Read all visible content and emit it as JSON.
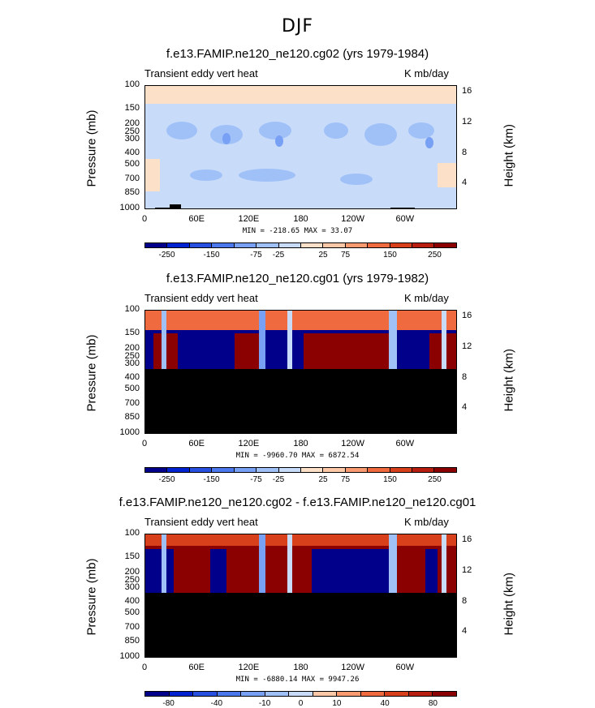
{
  "title": "DJF",
  "colors": [
    "#00008b",
    "#0022d0",
    "#2850e0",
    "#4c78ee",
    "#78a0f4",
    "#a0c0f8",
    "#c8dcfa",
    "#fde0c8",
    "#fcc8a8",
    "#fa9a70",
    "#f06a40",
    "#d8401c",
    "#b81e10",
    "#8b0000"
  ],
  "x_ticks": [
    "0",
    "60E",
    "120E",
    "180",
    "120W",
    "60W"
  ],
  "y_ticks_pressure": [
    "100",
    "150",
    "200",
    "250",
    "300",
    "400",
    "500",
    "700",
    "850",
    "1000"
  ],
  "y_ticks_height": [
    "16",
    "12",
    "8",
    "4"
  ],
  "panels": [
    {
      "title": "f.e13.FAMIP.ne120_ne120.cg02 (yrs 1979-1984)",
      "left": "Transient eddy vert heat",
      "right": "K mb/day",
      "ylabel": "Pressure (mb)",
      "rlabel": "Height (km)",
      "minmax": "MIN = -218.65   MAX =  33.07",
      "cbar_labels": [
        "-250",
        "-150",
        "-75",
        "-25",
        "25",
        "75",
        "150",
        "250"
      ]
    },
    {
      "title": "f.e13.FAMIP.ne120_ne120.cg01 (yrs 1979-1982)",
      "left": "Transient eddy vert heat",
      "right": "K mb/day",
      "ylabel": "Pressure (mb)",
      "rlabel": "Height (km)",
      "minmax": "MIN = -9960.70   MAX = 6872.54",
      "cbar_labels": [
        "-250",
        "-150",
        "-75",
        "-25",
        "25",
        "75",
        "150",
        "250"
      ]
    },
    {
      "title": "f.e13.FAMIP.ne120_ne120.cg02 - f.e13.FAMIP.ne120_ne120.cg01",
      "left": "Transient eddy vert heat",
      "right": "K mb/day",
      "ylabel": "Pressure (mb)",
      "rlabel": "Height (km)",
      "minmax": "MIN = -6880.14   MAX = 9947.26",
      "cbar_labels": [
        "-80",
        "-40",
        "-10",
        "0",
        "10",
        "40",
        "80"
      ]
    }
  ],
  "chart_data": [
    {
      "type": "heatmap",
      "title": "f.e13.FAMIP.ne120_ne120.cg02 (yrs 1979-1984)",
      "xlabel": "",
      "ylabel": "Pressure (mb)",
      "y2label": "Height (km)",
      "x_ticks": [
        "0",
        "60E",
        "120E",
        "180",
        "120W",
        "60W"
      ],
      "y_ticks": [
        100,
        150,
        200,
        250,
        300,
        400,
        500,
        700,
        850,
        1000
      ],
      "y_scale": "log",
      "y_reversed": true,
      "min": -218.65,
      "max": 33.07,
      "levels": [
        -250,
        -150,
        -75,
        -25,
        25,
        75,
        150,
        250
      ]
    },
    {
      "type": "heatmap",
      "title": "f.e13.FAMIP.ne120_ne120.cg01 (yrs 1979-1982)",
      "xlabel": "",
      "ylabel": "Pressure (mb)",
      "y2label": "Height (km)",
      "x_ticks": [
        "0",
        "60E",
        "120E",
        "180",
        "120W",
        "60W"
      ],
      "y_ticks": [
        100,
        150,
        200,
        250,
        300,
        400,
        500,
        700,
        850,
        1000
      ],
      "y_scale": "log",
      "y_reversed": true,
      "min": -9960.7,
      "max": 6872.54,
      "levels": [
        -250,
        -150,
        -75,
        -25,
        25,
        75,
        150,
        250
      ]
    },
    {
      "type": "heatmap",
      "title": "f.e13.FAMIP.ne120_ne120.cg02 - f.e13.FAMIP.ne120_ne120.cg01",
      "xlabel": "",
      "ylabel": "Pressure (mb)",
      "y2label": "Height (km)",
      "x_ticks": [
        "0",
        "60E",
        "120E",
        "180",
        "120W",
        "60W"
      ],
      "y_ticks": [
        100,
        150,
        200,
        250,
        300,
        400,
        500,
        700,
        850,
        1000
      ],
      "y_scale": "log",
      "y_reversed": true,
      "min": -6880.14,
      "max": 9947.26,
      "levels": [
        -80,
        -40,
        -10,
        0,
        10,
        40,
        80
      ]
    }
  ]
}
